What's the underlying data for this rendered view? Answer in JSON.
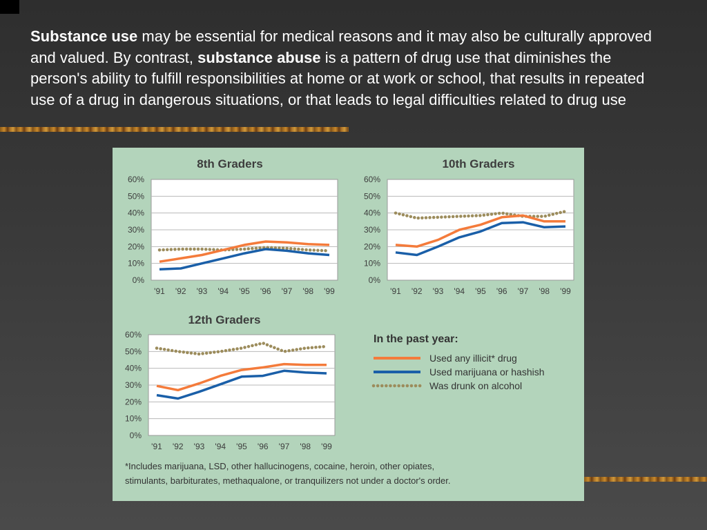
{
  "slide": {
    "paragraph": [
      {
        "text": "Substance use",
        "bold": true
      },
      {
        "text": " may be essential for medical reasons and it may also be culturally approved and valued. By contrast, ",
        "bold": false
      },
      {
        "text": "substance abuse",
        "bold": true
      },
      {
        "text": " is a pattern of drug use that diminishes the person's ability to fulfill responsibilities at home or at work or school, that results in repeated use of a drug in dangerous situations, or that leads to legal difficulties related to drug use",
        "bold": false
      }
    ]
  },
  "colors": {
    "illicit": "#f47b3b",
    "marijuana": "#1a5fa8",
    "alcohol": "#9c8c5c",
    "panel": "#b3d4bb"
  },
  "legend": {
    "title": "In the past year:",
    "items": [
      {
        "key": "illicit",
        "label": "Used any illicit* drug"
      },
      {
        "key": "marijuana",
        "label": "Used marijuana or hashish"
      },
      {
        "key": "alcohol",
        "label": "Was drunk on alcohol"
      }
    ]
  },
  "footnote": [
    "*Includes marijuana, LSD, other hallucinogens, cocaine, heroin, other opiates,",
    "stimulants, barbiturates, methaqualone, or tranquilizers not under a doctor's order."
  ],
  "chart_data": [
    {
      "type": "line",
      "title": "8th Graders",
      "x": [
        "'91",
        "'92",
        "'93",
        "'94",
        "'95",
        "'96",
        "'97",
        "'98",
        "'99"
      ],
      "ylim": [
        0,
        60
      ],
      "yticks": [
        "0%",
        "10%",
        "20%",
        "30%",
        "40%",
        "50%",
        "60%"
      ],
      "grid": true,
      "series": [
        {
          "name": "Used any illicit* drug",
          "key": "illicit",
          "values": [
            11,
            13,
            15,
            18,
            21,
            23,
            22.5,
            21.5,
            21
          ]
        },
        {
          "name": "Used marijuana or hashish",
          "key": "marijuana",
          "values": [
            6.5,
            7,
            10,
            13,
            16,
            18.5,
            17.5,
            16,
            15
          ]
        },
        {
          "name": "Was drunk on alcohol",
          "key": "alcohol",
          "values": [
            18,
            18.5,
            18.5,
            18,
            18.5,
            19.5,
            19,
            18,
            17.5
          ]
        }
      ]
    },
    {
      "type": "line",
      "title": "10th Graders",
      "x": [
        "'91",
        "'92",
        "'93",
        "'94",
        "'95",
        "'96",
        "'97",
        "'98",
        "'99"
      ],
      "ylim": [
        0,
        60
      ],
      "yticks": [
        "0%",
        "10%",
        "20%",
        "30%",
        "40%",
        "50%",
        "60%"
      ],
      "grid": true,
      "series": [
        {
          "name": "Used any illicit* drug",
          "key": "illicit",
          "values": [
            21,
            20,
            24,
            30,
            33,
            37.5,
            38.5,
            35,
            35
          ]
        },
        {
          "name": "Used marijuana or hashish",
          "key": "marijuana",
          "values": [
            16.5,
            15,
            20,
            25.5,
            29,
            34,
            34.5,
            31.5,
            32
          ]
        },
        {
          "name": "Was drunk on alcohol",
          "key": "alcohol",
          "values": [
            40,
            37,
            37.5,
            38,
            38.5,
            40,
            38,
            38,
            41
          ]
        }
      ]
    },
    {
      "type": "line",
      "title": "12th Graders",
      "x": [
        "'91",
        "'92",
        "'93",
        "'94",
        "'95",
        "'96",
        "'97",
        "'98",
        "'99"
      ],
      "ylim": [
        0,
        60
      ],
      "yticks": [
        "0%",
        "10%",
        "20%",
        "30%",
        "40%",
        "50%",
        "60%"
      ],
      "grid": true,
      "series": [
        {
          "name": "Used any illicit* drug",
          "key": "illicit",
          "values": [
            29.5,
            27,
            31,
            35.5,
            39,
            40.5,
            42.5,
            42,
            42
          ]
        },
        {
          "name": "Used marijuana or hashish",
          "key": "marijuana",
          "values": [
            24,
            22,
            26,
            30.5,
            35,
            35.5,
            38.5,
            37.5,
            37
          ]
        },
        {
          "name": "Was drunk on alcohol",
          "key": "alcohol",
          "values": [
            52,
            50,
            48.5,
            50,
            52,
            55,
            50,
            52,
            53
          ]
        }
      ]
    }
  ]
}
